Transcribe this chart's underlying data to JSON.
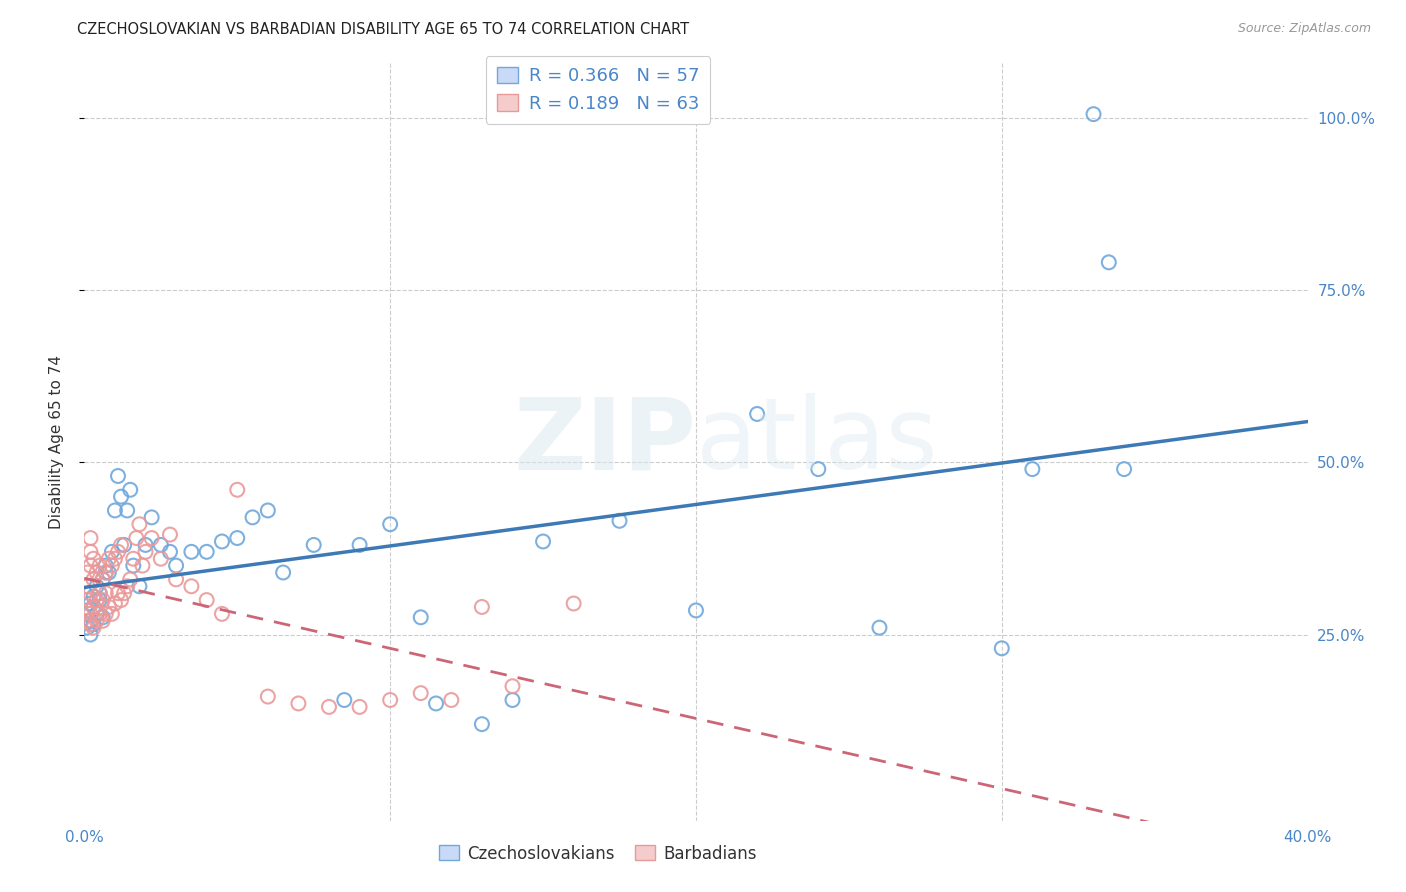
{
  "title": "CZECHOSLOVAKIAN VS BARBADIAN DISABILITY AGE 65 TO 74 CORRELATION CHART",
  "source": "Source: ZipAtlas.com",
  "ylabel": "Disability Age 65 to 74",
  "czech_color": "#6fa8dc",
  "barb_color": "#ea9999",
  "czech_line_color": "#3d7ab5",
  "barb_line_color": "#cc6677",
  "background_color": "#ffffff",
  "grid_color": "#cccccc",
  "legend_r_czech": "R = 0.366",
  "legend_n_czech": "N = 57",
  "legend_r_barb": "R = 0.189",
  "legend_n_barb": "N = 63",
  "czech_x": [
    0.001,
    0.001,
    0.002,
    0.002,
    0.002,
    0.003,
    0.003,
    0.003,
    0.004,
    0.004,
    0.005,
    0.005,
    0.006,
    0.006,
    0.007,
    0.007,
    0.008,
    0.009,
    0.01,
    0.011,
    0.012,
    0.013,
    0.014,
    0.015,
    0.016,
    0.018,
    0.02,
    0.022,
    0.025,
    0.028,
    0.03,
    0.035,
    0.04,
    0.045,
    0.05,
    0.055,
    0.06,
    0.065,
    0.075,
    0.085,
    0.09,
    0.1,
    0.11,
    0.115,
    0.13,
    0.14,
    0.15,
    0.175,
    0.2,
    0.22,
    0.24,
    0.26,
    0.3,
    0.31,
    0.33,
    0.335,
    0.34
  ],
  "czech_y": [
    0.285,
    0.26,
    0.295,
    0.27,
    0.25,
    0.29,
    0.265,
    0.305,
    0.28,
    0.32,
    0.31,
    0.3,
    0.33,
    0.275,
    0.34,
    0.35,
    0.34,
    0.37,
    0.43,
    0.48,
    0.45,
    0.38,
    0.43,
    0.46,
    0.35,
    0.32,
    0.38,
    0.42,
    0.38,
    0.37,
    0.35,
    0.37,
    0.37,
    0.385,
    0.39,
    0.42,
    0.43,
    0.34,
    0.38,
    0.155,
    0.38,
    0.41,
    0.275,
    0.15,
    0.12,
    0.155,
    0.385,
    0.415,
    0.285,
    0.57,
    0.49,
    0.26,
    0.23,
    0.49,
    1.005,
    0.79,
    0.49
  ],
  "barb_x": [
    0.001,
    0.001,
    0.001,
    0.001,
    0.001,
    0.002,
    0.002,
    0.002,
    0.002,
    0.002,
    0.002,
    0.003,
    0.003,
    0.003,
    0.003,
    0.004,
    0.004,
    0.004,
    0.005,
    0.005,
    0.005,
    0.006,
    0.006,
    0.006,
    0.007,
    0.007,
    0.007,
    0.008,
    0.008,
    0.009,
    0.009,
    0.01,
    0.01,
    0.011,
    0.011,
    0.012,
    0.012,
    0.013,
    0.014,
    0.015,
    0.016,
    0.017,
    0.018,
    0.019,
    0.02,
    0.022,
    0.025,
    0.028,
    0.03,
    0.035,
    0.04,
    0.045,
    0.05,
    0.06,
    0.07,
    0.08,
    0.09,
    0.1,
    0.11,
    0.12,
    0.13,
    0.14,
    0.16
  ],
  "barb_y": [
    0.285,
    0.27,
    0.3,
    0.32,
    0.34,
    0.265,
    0.28,
    0.31,
    0.35,
    0.37,
    0.39,
    0.26,
    0.29,
    0.33,
    0.36,
    0.27,
    0.3,
    0.34,
    0.28,
    0.31,
    0.35,
    0.27,
    0.3,
    0.33,
    0.28,
    0.31,
    0.34,
    0.29,
    0.36,
    0.28,
    0.35,
    0.295,
    0.36,
    0.31,
    0.37,
    0.3,
    0.38,
    0.31,
    0.32,
    0.33,
    0.36,
    0.39,
    0.41,
    0.35,
    0.37,
    0.39,
    0.36,
    0.395,
    0.33,
    0.32,
    0.3,
    0.28,
    0.46,
    0.16,
    0.15,
    0.145,
    0.145,
    0.155,
    0.165,
    0.155,
    0.29,
    0.175,
    0.295
  ],
  "xlim": [
    0.0,
    0.4
  ],
  "ylim": [
    0.0,
    1.08
  ],
  "ytick_vals": [
    0.25,
    0.5,
    0.75,
    1.0
  ],
  "ytick_labels": [
    "25.0%",
    "50.0%",
    "75.0%",
    "100.0%"
  ]
}
